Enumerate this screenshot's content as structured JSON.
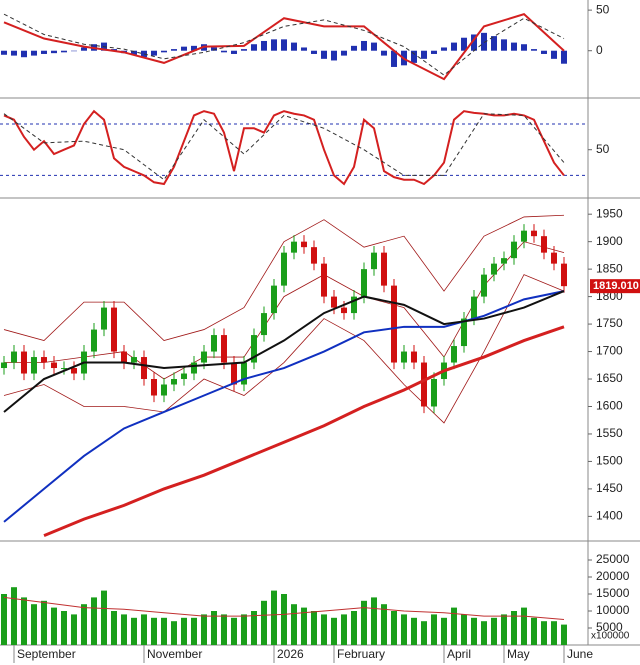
{
  "chart_data": [
    {
      "type": "macd",
      "ylim": [
        -57,
        60
      ],
      "yticks": [
        50,
        0
      ],
      "histogram": [
        -5,
        -6,
        -8,
        -6,
        -4,
        -3,
        -2,
        0,
        4,
        8,
        10,
        2,
        -3,
        -5,
        -8,
        -6,
        -2,
        2,
        5,
        6,
        8,
        4,
        -2,
        -4,
        2,
        8,
        12,
        14,
        14,
        10,
        4,
        -4,
        -10,
        -12,
        -6,
        6,
        12,
        10,
        -6,
        -20,
        -18,
        -15,
        -10,
        -4,
        4,
        10,
        16,
        20,
        22,
        18,
        14,
        10,
        8,
        2,
        -4,
        -10,
        -16
      ],
      "histogram_color": "#2030b0",
      "lines": [
        {
          "color": "#d42020",
          "dash": false,
          "x": [
            0,
            4,
            8,
            12,
            16,
            20,
            24,
            28,
            32,
            36,
            40,
            44,
            48,
            52,
            56
          ],
          "values": [
            35,
            15,
            5,
            -2,
            -15,
            5,
            6,
            40,
            30,
            30,
            -10,
            -35,
            30,
            45,
            0
          ]
        },
        {
          "color": "#333333",
          "dash": true,
          "x": [
            0,
            4,
            8,
            12,
            16,
            20,
            24,
            28,
            32,
            36,
            40,
            44,
            48,
            52,
            56
          ],
          "values": [
            45,
            20,
            8,
            2,
            -10,
            -2,
            10,
            30,
            38,
            25,
            5,
            -30,
            10,
            40,
            15
          ]
        }
      ]
    },
    {
      "type": "stochastic",
      "ylim": [
        -4,
        108
      ],
      "yticks": [
        50
      ],
      "hlines": [
        80,
        20
      ],
      "hline_color": "#2030b0",
      "lines": [
        {
          "color": "#d42020",
          "dash": false,
          "values": [
            90,
            85,
            65,
            50,
            60,
            45,
            50,
            55,
            80,
            95,
            85,
            40,
            30,
            25,
            20,
            12,
            10,
            30,
            60,
            90,
            95,
            92,
            70,
            25,
            75,
            75,
            70,
            90,
            95,
            92,
            90,
            85,
            50,
            20,
            10,
            30,
            85,
            75,
            25,
            18,
            15,
            15,
            10,
            20,
            35,
            85,
            95,
            93,
            92,
            90,
            90,
            92,
            90,
            85,
            60,
            35,
            20
          ]
        },
        {
          "color": "#333333",
          "dash": true,
          "x": [
            0,
            4,
            8,
            12,
            16,
            20,
            24,
            28,
            32,
            36,
            40,
            44,
            48,
            52,
            56
          ],
          "values": [
            92,
            58,
            60,
            50,
            15,
            85,
            45,
            90,
            75,
            50,
            20,
            20,
            92,
            90,
            35
          ]
        }
      ]
    },
    {
      "type": "candlestick",
      "ylim": [
        1357,
        1974
      ],
      "yticks": [
        1400,
        1450,
        1500,
        1550,
        1600,
        1650,
        1700,
        1750,
        1800,
        1850,
        1900,
        1950
      ],
      "up_color": "#1a9e1a",
      "down_color": "#d01010",
      "last_label": "1819.010",
      "last_label_color": "#d01010",
      "open": [
        1670,
        1680,
        1700,
        1660,
        1690,
        1680,
        1670,
        1670,
        1660,
        1700,
        1740,
        1780,
        1700,
        1680,
        1690,
        1650,
        1620,
        1640,
        1650,
        1660,
        1680,
        1700,
        1730,
        1680,
        1640,
        1680,
        1730,
        1770,
        1820,
        1880,
        1900,
        1890,
        1860,
        1800,
        1780,
        1770,
        1800,
        1850,
        1880,
        1820,
        1680,
        1700,
        1680,
        1600,
        1650,
        1680,
        1710,
        1760,
        1800,
        1840,
        1860,
        1870,
        1900,
        1920,
        1910,
        1880,
        1860
      ],
      "high": [
        1692,
        1712,
        1712,
        1702,
        1702,
        1692,
        1682,
        1682,
        1712,
        1752,
        1792,
        1792,
        1712,
        1702,
        1702,
        1662,
        1652,
        1662,
        1672,
        1692,
        1712,
        1742,
        1742,
        1692,
        1692,
        1742,
        1782,
        1832,
        1892,
        1912,
        1912,
        1902,
        1872,
        1812,
        1792,
        1812,
        1862,
        1892,
        1892,
        1832,
        1712,
        1712,
        1692,
        1662,
        1692,
        1722,
        1772,
        1812,
        1852,
        1872,
        1882,
        1912,
        1932,
        1932,
        1922,
        1892,
        1872
      ],
      "low": [
        1658,
        1668,
        1648,
        1648,
        1668,
        1658,
        1658,
        1648,
        1648,
        1688,
        1728,
        1688,
        1668,
        1668,
        1638,
        1608,
        1608,
        1628,
        1638,
        1648,
        1668,
        1688,
        1668,
        1628,
        1628,
        1668,
        1718,
        1758,
        1808,
        1868,
        1878,
        1848,
        1788,
        1768,
        1758,
        1758,
        1788,
        1838,
        1808,
        1668,
        1668,
        1668,
        1588,
        1588,
        1638,
        1668,
        1698,
        1748,
        1788,
        1828,
        1848,
        1858,
        1888,
        1898,
        1868,
        1848,
        1807
      ],
      "close": [
        1680,
        1700,
        1660,
        1690,
        1680,
        1670,
        1670,
        1660,
        1700,
        1740,
        1780,
        1700,
        1680,
        1690,
        1650,
        1620,
        1640,
        1650,
        1660,
        1680,
        1700,
        1730,
        1680,
        1640,
        1680,
        1730,
        1770,
        1820,
        1880,
        1900,
        1890,
        1860,
        1800,
        1780,
        1770,
        1800,
        1850,
        1880,
        1820,
        1680,
        1700,
        1680,
        1600,
        1650,
        1680,
        1710,
        1760,
        1800,
        1840,
        1860,
        1870,
        1900,
        1920,
        1910,
        1880,
        1860,
        1819.01
      ],
      "lines": [
        {
          "color": "#a01818",
          "width": 0.8,
          "x": [
            0,
            4,
            8,
            12,
            16,
            20,
            24,
            28,
            32,
            36,
            40,
            44,
            48,
            52,
            56
          ],
          "values": [
            1740,
            1720,
            1790,
            1790,
            1720,
            1740,
            1780,
            1900,
            1940,
            1890,
            1910,
            1810,
            1910,
            1945,
            1948
          ]
        },
        {
          "color": "#a01818",
          "width": 0.8,
          "x": [
            0,
            4,
            8,
            12,
            16,
            20,
            24,
            28,
            32,
            36,
            40,
            44,
            48,
            52,
            56
          ],
          "values": [
            1680,
            1680,
            1690,
            1700,
            1650,
            1690,
            1690,
            1800,
            1840,
            1800,
            1780,
            1690,
            1820,
            1900,
            1880
          ]
        },
        {
          "color": "#a01818",
          "width": 0.8,
          "x": [
            0,
            4,
            8,
            12,
            16,
            20,
            24,
            28,
            32,
            36,
            40,
            44,
            48,
            52,
            56
          ],
          "values": [
            1620,
            1640,
            1600,
            1600,
            1590,
            1650,
            1620,
            1680,
            1760,
            1720,
            1640,
            1570,
            1700,
            1840,
            1810
          ]
        },
        {
          "color": "#d42020",
          "width": 3,
          "x": [
            4,
            8,
            12,
            16,
            20,
            24,
            28,
            32,
            36,
            40,
            44,
            48,
            52,
            56
          ],
          "values": [
            1365,
            1395,
            1420,
            1450,
            1475,
            1505,
            1535,
            1565,
            1600,
            1630,
            1665,
            1690,
            1720,
            1745
          ]
        },
        {
          "color": "#1030c0",
          "width": 2,
          "x": [
            0,
            4,
            8,
            12,
            16,
            20,
            24,
            28,
            32,
            36,
            40,
            44,
            48,
            52,
            56
          ],
          "values": [
            1390,
            1450,
            1510,
            1560,
            1590,
            1620,
            1650,
            1670,
            1700,
            1735,
            1745,
            1745,
            1765,
            1795,
            1810
          ]
        },
        {
          "color": "#111111",
          "width": 2,
          "x": [
            0,
            4,
            8,
            12,
            16,
            20,
            24,
            28,
            32,
            36,
            40,
            44,
            48,
            52,
            56
          ],
          "values": [
            1590,
            1650,
            1680,
            1680,
            1670,
            1675,
            1680,
            1720,
            1770,
            1800,
            1785,
            1750,
            1760,
            1780,
            1810
          ]
        }
      ]
    },
    {
      "type": "volume",
      "ylim": [
        0,
        30000
      ],
      "yticks": [
        5000,
        10000,
        15000,
        20000,
        25000
      ],
      "unit": "x100000",
      "color": "#1a9e1a",
      "categories": [
        null,
        "September",
        null,
        null,
        null,
        null,
        null,
        null,
        null,
        null,
        null,
        null,
        null,
        null,
        "November",
        null,
        null,
        null,
        null,
        null,
        null,
        null,
        null,
        null,
        null,
        null,
        null,
        "2026",
        null,
        null,
        null,
        null,
        null,
        "February",
        null,
        null,
        null,
        null,
        null,
        null,
        null,
        null,
        null,
        null,
        "April",
        null,
        null,
        null,
        null,
        null,
        "May",
        null,
        null,
        null,
        null,
        null,
        "June"
      ],
      "values": [
        15000,
        17000,
        14000,
        12000,
        13000,
        11000,
        10000,
        9000,
        12000,
        14000,
        16000,
        10000,
        9000,
        8000,
        9000,
        8000,
        8000,
        7000,
        8000,
        8000,
        9000,
        10000,
        9000,
        8000,
        9000,
        10000,
        13000,
        16000,
        15000,
        12000,
        11000,
        10000,
        9000,
        8000,
        9000,
        10000,
        13000,
        14000,
        12000,
        10000,
        9000,
        8000,
        7000,
        9000,
        8000,
        11000,
        9000,
        8000,
        7000,
        8000,
        9000,
        10000,
        11000,
        8000,
        7000,
        7000,
        6000
      ],
      "lines": [
        {
          "color": "#c03030",
          "width": 1,
          "x": [
            0,
            4,
            8,
            12,
            16,
            20,
            24,
            28,
            32,
            36,
            40,
            44,
            48,
            52,
            56
          ],
          "values": [
            14000,
            12500,
            11000,
            10500,
            9500,
            8500,
            8500,
            9000,
            10000,
            11000,
            10000,
            9500,
            8500,
            8500,
            7500
          ]
        }
      ]
    }
  ]
}
